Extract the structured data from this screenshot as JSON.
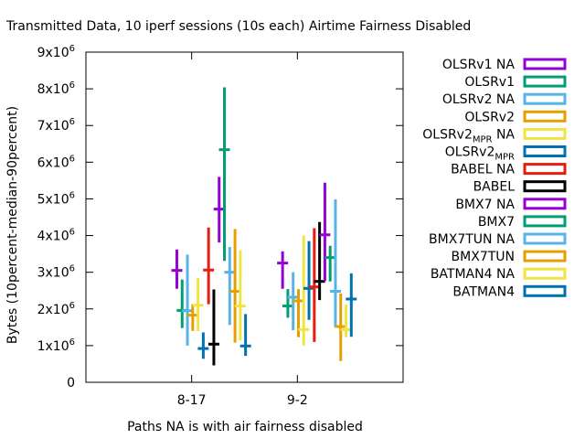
{
  "chart_data": {
    "type": "candlestick",
    "title": "Transmitted Data, 10 iperf sessions (10s each) Airtime Fairness Disabled",
    "xlabel": "Paths NA is with air fairness disabled",
    "ylabel": "Bytes (10percent-median-90percent)",
    "categories": [
      "8-17",
      "9-2"
    ],
    "xlim": [
      0,
      3
    ],
    "ylim": [
      0,
      9000000
    ],
    "yticks": [
      {
        "value": 0,
        "mantissa": "0",
        "exp": ""
      },
      {
        "value": 1000000,
        "mantissa": "1x10",
        "exp": "6"
      },
      {
        "value": 2000000,
        "mantissa": "2x10",
        "exp": "6"
      },
      {
        "value": 3000000,
        "mantissa": "3x10",
        "exp": "6"
      },
      {
        "value": 4000000,
        "mantissa": "4x10",
        "exp": "6"
      },
      {
        "value": 5000000,
        "mantissa": "5x10",
        "exp": "6"
      },
      {
        "value": 6000000,
        "mantissa": "6x10",
        "exp": "6"
      },
      {
        "value": 7000000,
        "mantissa": "7x10",
        "exp": "6"
      },
      {
        "value": 8000000,
        "mantissa": "8x10",
        "exp": "6"
      },
      {
        "value": 9000000,
        "mantissa": "9x10",
        "exp": "6"
      }
    ],
    "legend_position": "right",
    "grid": false,
    "series": [
      {
        "name": "OLSRv1 NA",
        "name_main": "OLSRv1 NA",
        "name_sub": "",
        "name_tail": "",
        "color": "#9400d3",
        "points": [
          {
            "x": 0.86,
            "low": 2550000,
            "median": 3050000,
            "high": 3620000
          },
          {
            "x": 1.86,
            "low": 2550000,
            "median": 3250000,
            "high": 3570000
          }
        ]
      },
      {
        "name": "OLSRv1",
        "name_main": "OLSRv1",
        "name_sub": "",
        "name_tail": "",
        "color": "#009e73",
        "points": [
          {
            "x": 0.91,
            "low": 1480000,
            "median": 1960000,
            "high": 2800000
          },
          {
            "x": 1.91,
            "low": 1760000,
            "median": 2080000,
            "high": 2540000
          }
        ]
      },
      {
        "name": "OLSRv2 NA",
        "name_main": "OLSRv2 NA",
        "name_sub": "",
        "name_tail": "",
        "color": "#56b4e9",
        "points": [
          {
            "x": 0.96,
            "low": 1000000,
            "median": 1950000,
            "high": 3480000
          },
          {
            "x": 1.96,
            "low": 1420000,
            "median": 2320000,
            "high": 3000000
          }
        ]
      },
      {
        "name": "OLSRv2",
        "name_main": "OLSRv2",
        "name_sub": "",
        "name_tail": "",
        "color": "#e69f00",
        "points": [
          {
            "x": 1.01,
            "low": 1400000,
            "median": 1830000,
            "high": 2130000
          },
          {
            "x": 2.01,
            "low": 1230000,
            "median": 2220000,
            "high": 2540000
          }
        ]
      },
      {
        "name": "OLSRv2MPR NA",
        "name_main": "OLSRv2",
        "name_sub": "MPR",
        "name_tail": " NA",
        "color": "#f0e442",
        "points": [
          {
            "x": 1.06,
            "low": 1400000,
            "median": 2100000,
            "high": 2840000
          },
          {
            "x": 2.06,
            "low": 1000000,
            "median": 1440000,
            "high": 4000000
          }
        ]
      },
      {
        "name": "OLSRv2MPR",
        "name_main": "OLSRv2",
        "name_sub": "MPR",
        "name_tail": "",
        "color": "#0072b2",
        "points": [
          {
            "x": 1.11,
            "low": 640000,
            "median": 920000,
            "high": 1360000
          },
          {
            "x": 2.11,
            "low": 1700000,
            "median": 2560000,
            "high": 3850000
          }
        ]
      },
      {
        "name": "BABEL NA",
        "name_main": "BABEL NA",
        "name_sub": "",
        "name_tail": "",
        "color": "#e51e10",
        "points": [
          {
            "x": 1.16,
            "low": 2130000,
            "median": 3060000,
            "high": 4220000
          },
          {
            "x": 2.16,
            "low": 1100000,
            "median": 2600000,
            "high": 4200000
          }
        ]
      },
      {
        "name": "BABEL",
        "name_main": "BABEL",
        "name_sub": "",
        "name_tail": "",
        "color": "#000000",
        "points": [
          {
            "x": 1.21,
            "low": 460000,
            "median": 1040000,
            "high": 2530000
          },
          {
            "x": 2.21,
            "low": 2240000,
            "median": 2750000,
            "high": 4370000
          }
        ]
      },
      {
        "name": "BMX7 NA",
        "name_main": "BMX7 NA",
        "name_sub": "",
        "name_tail": "",
        "color": "#9400d3",
        "points": [
          {
            "x": 1.26,
            "low": 3810000,
            "median": 4720000,
            "high": 5600000
          },
          {
            "x": 2.26,
            "low": 2760000,
            "median": 4020000,
            "high": 5440000
          }
        ]
      },
      {
        "name": "BMX7",
        "name_main": "BMX7",
        "name_sub": "",
        "name_tail": "",
        "color": "#009e73",
        "points": [
          {
            "x": 1.31,
            "low": 3310000,
            "median": 6340000,
            "high": 8040000
          },
          {
            "x": 2.31,
            "low": 2750000,
            "median": 3400000,
            "high": 3720000
          }
        ]
      },
      {
        "name": "BMX7TUN NA",
        "name_main": "BMX7TUN NA",
        "name_sub": "",
        "name_tail": "",
        "color": "#56b4e9",
        "points": [
          {
            "x": 1.36,
            "low": 1560000,
            "median": 3000000,
            "high": 3690000
          },
          {
            "x": 2.36,
            "low": 1500000,
            "median": 2480000,
            "high": 4990000
          }
        ]
      },
      {
        "name": "BMX7TUN",
        "name_main": "BMX7TUN",
        "name_sub": "",
        "name_tail": "",
        "color": "#e69f00",
        "points": [
          {
            "x": 1.41,
            "low": 1080000,
            "median": 2480000,
            "high": 4180000
          },
          {
            "x": 2.41,
            "low": 580000,
            "median": 1520000,
            "high": 2420000
          }
        ]
      },
      {
        "name": "BATMAN4 NA",
        "name_main": "BATMAN4 NA",
        "name_sub": "",
        "name_tail": "",
        "color": "#f0e442",
        "points": [
          {
            "x": 1.46,
            "low": 1140000,
            "median": 2080000,
            "high": 3600000
          },
          {
            "x": 2.46,
            "low": 1230000,
            "median": 1430000,
            "high": 2120000
          }
        ]
      },
      {
        "name": "BATMAN4",
        "name_main": "BATMAN4",
        "name_sub": "",
        "name_tail": "",
        "color": "#0072b2",
        "points": [
          {
            "x": 1.51,
            "low": 720000,
            "median": 990000,
            "high": 1860000
          },
          {
            "x": 2.51,
            "low": 1240000,
            "median": 2270000,
            "high": 2970000
          }
        ]
      }
    ]
  }
}
